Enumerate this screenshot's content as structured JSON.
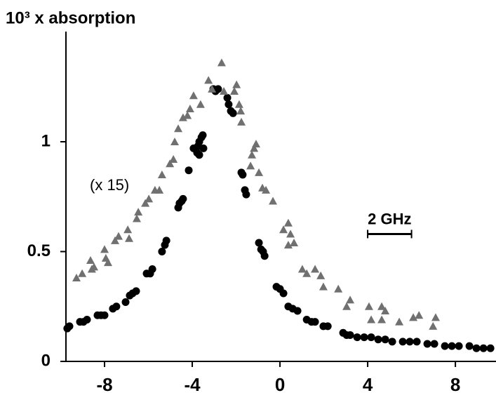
{
  "chart_data": {
    "type": "scatter",
    "title": "10³ x absorption",
    "xlim": [
      -9.76,
      9.82
    ],
    "ylim": [
      0,
      1.5
    ],
    "xticks": [
      -8,
      -4,
      0,
      4,
      8
    ],
    "yticks": [
      0,
      0.5,
      1
    ],
    "scale_bar": {
      "label": "2 GHz",
      "x": [
        4,
        6
      ],
      "y": 0.58
    },
    "series": [
      {
        "color": "#000000",
        "marker": "circle",
        "x": [
          -9.7,
          -9.6,
          -9.12,
          -8.96,
          -8.8,
          -8.32,
          -8.16,
          -8.0,
          -7.62,
          -7.46,
          -7.04,
          -6.85,
          -6.72,
          -6.56,
          -6.08,
          -5.92,
          -5.82,
          -5.38,
          -5.25,
          -5.18,
          -4.64,
          -4.58,
          -4.48,
          -4.42,
          -4.16,
          -3.94,
          -3.84,
          -3.74,
          -3.68,
          -3.58,
          -3.52,
          -3.78,
          -3.68,
          -3.49,
          -3.04,
          -2.94,
          -2.82,
          -2.4,
          -2.34,
          -2.24,
          -2.14,
          -1.76,
          -1.7,
          -1.6,
          -1.54,
          -0.96,
          -0.86,
          -0.77,
          -0.7,
          -0.16,
          0.0,
          0.16,
          0.38,
          0.58,
          0.8,
          1.22,
          1.44,
          1.6,
          1.98,
          2.18,
          2.88,
          3.04,
          3.2,
          3.52,
          3.84,
          4.16,
          4.48,
          4.8,
          5.12,
          5.6,
          5.92,
          6.24,
          6.72,
          7.04,
          7.52,
          7.84,
          8.16,
          8.64,
          8.96,
          9.28,
          9.6
        ],
        "values": [
          0.15,
          0.16,
          0.18,
          0.18,
          0.19,
          0.21,
          0.21,
          0.21,
          0.24,
          0.25,
          0.27,
          0.3,
          0.31,
          0.32,
          0.4,
          0.4,
          0.42,
          0.5,
          0.53,
          0.55,
          0.7,
          0.72,
          0.73,
          0.74,
          0.87,
          0.97,
          0.97,
          0.98,
          1.0,
          1.02,
          1.03,
          0.95,
          0.94,
          0.97,
          1.24,
          1.23,
          1.24,
          1.2,
          1.17,
          1.14,
          1.13,
          0.86,
          0.85,
          0.78,
          0.76,
          0.54,
          0.51,
          0.5,
          0.48,
          0.34,
          0.33,
          0.31,
          0.25,
          0.24,
          0.23,
          0.19,
          0.18,
          0.18,
          0.16,
          0.16,
          0.13,
          0.12,
          0.12,
          0.11,
          0.11,
          0.11,
          0.1,
          0.1,
          0.09,
          0.09,
          0.09,
          0.09,
          0.08,
          0.08,
          0.07,
          0.07,
          0.07,
          0.07,
          0.06,
          0.06,
          0.06
        ]
      },
      {
        "name": "(x 15)",
        "color": "#707070",
        "marker": "triangle",
        "x": [
          -9.28,
          -9.02,
          -8.64,
          -8.48,
          -8.58,
          -8.0,
          -7.94,
          -7.84,
          -7.52,
          -7.36,
          -6.94,
          -6.88,
          -6.53,
          -6.46,
          -6.14,
          -5.98,
          -5.7,
          -5.5,
          -5.38,
          -5.02,
          -4.86,
          -4.8,
          -4.64,
          -4.42,
          -4.22,
          -4.1,
          -3.94,
          -3.62,
          -3.26,
          -3.1,
          -2.66,
          -2.56,
          -2.08,
          -1.98,
          -1.86,
          -1.79,
          -1.76,
          -1.34,
          -1.28,
          -1.18,
          -1.09,
          -0.96,
          -0.8,
          -0.64,
          -0.32,
          0.16,
          0.38,
          0.48,
          0.38,
          0.64,
          1.02,
          1.22,
          1.6,
          1.86,
          1.98,
          2.66,
          3.04,
          3.2,
          4.06,
          4.16,
          4.64,
          4.8,
          4.64,
          5.44,
          6.08,
          6.34,
          6.98,
          7.1
        ],
        "values": [
          0.38,
          0.4,
          0.46,
          0.43,
          0.42,
          0.51,
          0.47,
          0.45,
          0.55,
          0.57,
          0.6,
          0.56,
          0.65,
          0.68,
          0.72,
          0.74,
          0.78,
          0.78,
          0.85,
          0.9,
          0.92,
          1.0,
          1.06,
          1.11,
          1.12,
          1.15,
          1.21,
          1.17,
          1.28,
          1.24,
          1.36,
          1.23,
          1.23,
          1.26,
          1.17,
          1.14,
          1.09,
          0.89,
          0.94,
          0.97,
          0.99,
          0.86,
          0.79,
          0.78,
          0.73,
          0.6,
          0.63,
          0.58,
          0.53,
          0.54,
          0.42,
          0.4,
          0.42,
          0.39,
          0.34,
          0.33,
          0.25,
          0.28,
          0.25,
          0.19,
          0.25,
          0.23,
          0.19,
          0.18,
          0.2,
          0.21,
          0.16,
          0.2
        ]
      }
    ]
  }
}
